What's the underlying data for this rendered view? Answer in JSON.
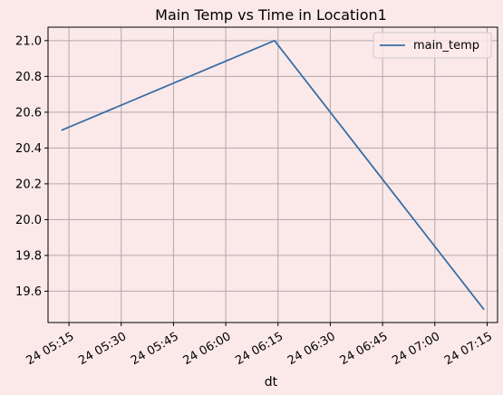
{
  "chart_data": {
    "type": "line",
    "title": "Main Temp vs Time in Location1",
    "xlabel": "dt",
    "ylabel": "",
    "x": [
      "24 05:13",
      "24 06:14",
      "24 07:14"
    ],
    "series": [
      {
        "name": "main_temp",
        "values": [
          20.5,
          21.0,
          19.5
        ]
      }
    ],
    "x_ticks": [
      "24 05:15",
      "24 05:30",
      "24 05:45",
      "24 06:00",
      "24 06:15",
      "24 06:30",
      "24 06:45",
      "24 07:00",
      "24 07:15"
    ],
    "y_ticks": [
      "19.6",
      "19.8",
      "20.0",
      "20.2",
      "20.4",
      "20.6",
      "20.8",
      "21.0"
    ],
    "xlim": [
      "24 05:09",
      "24 07:18"
    ],
    "ylim": [
      19.425,
      21.075
    ],
    "grid": true,
    "legend": "top-right",
    "colors": {
      "line": "#3a6ea5",
      "background": "#fbe9ea",
      "grid": "#b0a8a9"
    }
  }
}
